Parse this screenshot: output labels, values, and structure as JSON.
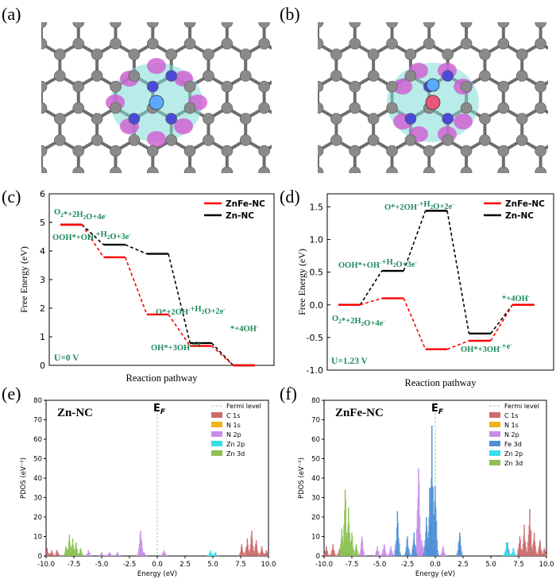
{
  "panel_labels": [
    "(a)",
    "(b)",
    "(c)",
    "(d)",
    "(e)",
    "(f)"
  ],
  "structure_panels": [
    {
      "label": "(a)",
      "structure": "Zn-NC charge density difference",
      "central_atom_color": "#5aa9ff"
    },
    {
      "label": "(b)",
      "structure": "ZnFe-NC charge density difference",
      "central_atom_color": "#e8577a"
    }
  ],
  "colors": {
    "zn_nc": "#000000",
    "znfe_nc": "#ff0000",
    "label_green": "#1e8a5a",
    "fermi_line": "#9fd19f",
    "carbon": "#8a8a8a",
    "nitrogen": "#4b4bd6",
    "positive_lobe": "#d25bd2",
    "negative_lobe": "#7fdcd6"
  },
  "chart_data": [
    {
      "panel": "(c)",
      "type": "line",
      "title": "",
      "xlabel": "Reaction pathway",
      "ylabel": "Free Energy (eV)",
      "ylim": [
        0,
        6
      ],
      "yticks": [
        "0",
        "1",
        "2",
        "3",
        "4",
        "5",
        "6"
      ],
      "condition": "U=0 V",
      "legend": [
        "ZnFe-NC",
        "Zn-NC"
      ],
      "legend_position": "top-right",
      "steps": [
        "O2*+2H2O+4e-",
        "OOH*+OH-+H2O+3e-",
        "O*+2OH-+H2O+2e-",
        "OH*+3OH-+e-",
        "*+4OH-"
      ],
      "series": [
        {
          "name": "ZnFe-NC",
          "color": "#ff0000",
          "values": [
            4.92,
            3.78,
            1.78,
            0.68,
            0.0
          ]
        },
        {
          "name": "Zn-NC",
          "color": "#000000",
          "values": [
            4.92,
            4.22,
            3.9,
            0.78,
            0.0
          ]
        }
      ]
    },
    {
      "panel": "(d)",
      "type": "line",
      "title": "",
      "xlabel": "Reaction pathway",
      "ylabel": "Free Energy (eV)",
      "ylim": [
        -1.0,
        1.7
      ],
      "yticks": [
        "-1.0",
        "-0.5",
        "0.0",
        "0.5",
        "1.0",
        "1.5"
      ],
      "condition": "U=1.23 V",
      "legend": [
        "ZnFe-NC",
        "Zn-NC"
      ],
      "legend_position": "top-right",
      "steps": [
        "O2*+2H2O+4e-",
        "OOH*+OH-+H2O+3e-",
        "O*+2OH-+H2O+2e-",
        "OH*+3OH-+e-",
        "*+4OH-"
      ],
      "series": [
        {
          "name": "ZnFe-NC",
          "color": "#ff0000",
          "values": [
            0.0,
            0.1,
            -0.68,
            -0.55,
            0.0
          ]
        },
        {
          "name": "Zn-NC",
          "color": "#000000",
          "values": [
            0.0,
            0.52,
            1.44,
            -0.44,
            0.0
          ]
        }
      ]
    },
    {
      "panel": "(e)",
      "type": "area",
      "title": "Zn-NC",
      "xlabel": "Energy (eV)",
      "ylabel": "PDOS (eV⁻¹)",
      "xlim": [
        -10,
        10
      ],
      "ylim": [
        0,
        80
      ],
      "xticks": [
        "-10.0",
        "-7.5",
        "-5.0",
        "-2.5",
        "0.0",
        "2.5",
        "5.0",
        "7.5",
        "10.0"
      ],
      "yticks": [
        "0",
        "10",
        "20",
        "30",
        "40",
        "50",
        "60",
        "70",
        "80"
      ],
      "fermi_label": "E",
      "fermi_sub": "F",
      "fermi_level": 0,
      "legend_position": "top-right",
      "series": [
        {
          "name": "Fermi level",
          "color": "#9fd19f",
          "peaks": []
        },
        {
          "name": "C 1s",
          "color": "#cd6b6b",
          "peaks": [
            [
              -9.9,
              4
            ],
            [
              -9.5,
              3
            ],
            [
              -9.0,
              3
            ],
            [
              7.6,
              6
            ],
            [
              8.1,
              9
            ],
            [
              8.5,
              13
            ],
            [
              8.9,
              8
            ],
            [
              9.4,
              5
            ],
            [
              9.8,
              3
            ]
          ]
        },
        {
          "name": "N 1s",
          "color": "#f2b21a",
          "peaks": []
        },
        {
          "name": "N 2p",
          "color": "#c78de6",
          "peaks": [
            [
              -6.2,
              3
            ],
            [
              -5.0,
              2
            ],
            [
              -4.3,
              2
            ],
            [
              -3.6,
              2
            ],
            [
              -1.5,
              13
            ],
            [
              -1.2,
              2
            ],
            [
              0.6,
              3
            ]
          ]
        },
        {
          "name": "Zn 2p",
          "color": "#35e0ea",
          "peaks": [
            [
              4.8,
              3
            ],
            [
              5.2,
              2
            ]
          ]
        },
        {
          "name": "Zn 3d",
          "color": "#8cc152",
          "peaks": [
            [
              -8.2,
              5
            ],
            [
              -7.9,
              11
            ],
            [
              -7.6,
              9
            ],
            [
              -7.3,
              7
            ],
            [
              -6.9,
              4
            ]
          ]
        }
      ],
      "legend": [
        "Fermi level",
        "C 1s",
        "N 1s",
        "N 2p",
        "Zn 2p",
        "Zn 3d"
      ]
    },
    {
      "panel": "(f)",
      "type": "area",
      "title": "ZnFe-NC",
      "xlabel": "Energy (eV)",
      "ylabel": "PDOS (eV⁻¹)",
      "xlim": [
        -10,
        10
      ],
      "ylim": [
        0,
        80
      ],
      "xticks": [
        "-10.0",
        "-7.5",
        "-5.0",
        "-2.5",
        "0.0",
        "2.5",
        "5.0",
        "7.5",
        "10.0"
      ],
      "yticks": [
        "0",
        "10",
        "20",
        "30",
        "40",
        "50",
        "60",
        "70",
        "80"
      ],
      "fermi_label": "E",
      "fermi_sub": "F",
      "fermi_level": 0,
      "legend_position": "top-right",
      "series": [
        {
          "name": "Fermi level",
          "color": "#9fd19f",
          "peaks": []
        },
        {
          "name": "C 1s",
          "color": "#cd6b6b",
          "peaks": [
            [
              -9.8,
              5
            ],
            [
              -9.2,
              6
            ],
            [
              -8.6,
              4
            ],
            [
              7.6,
              10
            ],
            [
              8.0,
              16
            ],
            [
              8.5,
              24
            ],
            [
              8.9,
              12
            ],
            [
              9.4,
              8
            ],
            [
              9.8,
              4
            ]
          ]
        },
        {
          "name": "N 1s",
          "color": "#f2b21a",
          "peaks": []
        },
        {
          "name": "N 2p",
          "color": "#c78de6",
          "peaks": [
            [
              -6.6,
              10
            ],
            [
              -5.2,
              5
            ],
            [
              -4.6,
              6
            ],
            [
              -4.0,
              5
            ],
            [
              -1.5,
              45
            ],
            [
              -1.2,
              8
            ],
            [
              0.7,
              5
            ]
          ]
        },
        {
          "name": "Fe 3d",
          "color": "#4f8fd6",
          "peaks": [
            [
              -3.4,
              23
            ],
            [
              -2.5,
              10
            ],
            [
              -1.9,
              12
            ],
            [
              -0.8,
              20
            ],
            [
              -0.5,
              35
            ],
            [
              -0.3,
              67
            ],
            [
              0.0,
              36
            ],
            [
              2.2,
              12
            ],
            [
              6.5,
              7
            ]
          ]
        },
        {
          "name": "Zn 2p",
          "color": "#35e0ea",
          "peaks": [
            [
              6.4,
              7
            ],
            [
              7.0,
              4
            ]
          ]
        },
        {
          "name": "Zn 3d",
          "color": "#8cc152",
          "peaks": [
            [
              -8.4,
              14
            ],
            [
              -8.1,
              34
            ],
            [
              -7.8,
              25
            ],
            [
              -7.5,
              12
            ],
            [
              -7.1,
              6
            ]
          ]
        }
      ],
      "legend": [
        "Fermi level",
        "C 1s",
        "N 1s",
        "N 2p",
        "Fe 3d",
        "Zn 2p",
        "Zn 3d"
      ]
    }
  ],
  "energy_labels_c": {
    "s1": {
      "main": "O",
      "sub1": "2",
      "mid": "*+2H",
      "sub2": "2",
      "end": "O+4e",
      "sup": "-"
    },
    "s2": {
      "main": "OOH*+OH",
      "sup1": "-",
      "mid": "+H",
      "sub": "2",
      "end": "O+3e",
      "sup2": "-"
    },
    "s3": {
      "main": "O*+2OH",
      "sup1": "-",
      "mid": "+H",
      "sub": "2",
      "end": "O+2e",
      "sup2": "-"
    },
    "s4": {
      "main": "OH*+3OH",
      "sup1": "-",
      "end": "+e",
      "sup2": "-"
    },
    "s5": {
      "main": "*+4OH",
      "sup": "-"
    }
  }
}
